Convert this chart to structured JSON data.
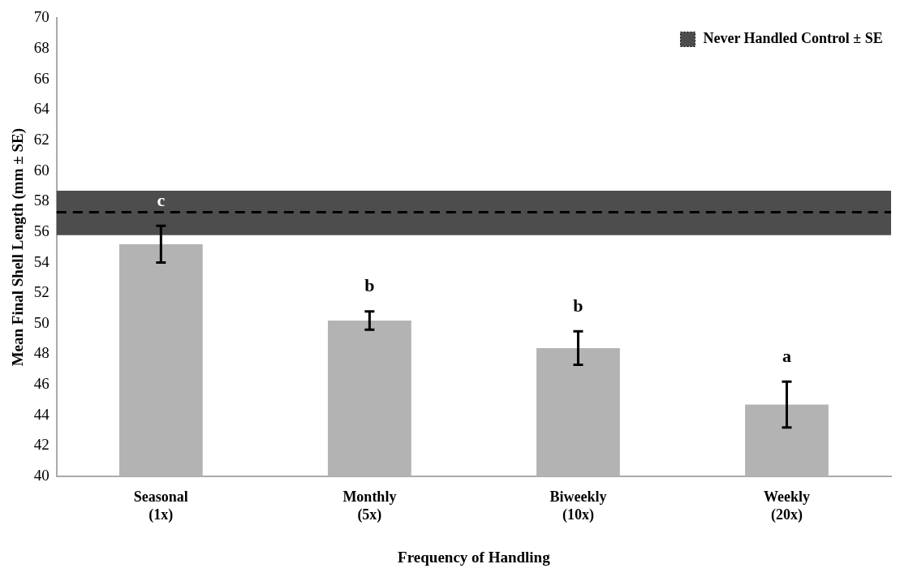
{
  "chart_data": {
    "type": "bar",
    "xlabel": "Frequency of Handling",
    "ylabel": "Mean Final Shell Length (mm ± SE)",
    "categories": [
      "Seasonal\n(1x)",
      "Monthly\n(5x)",
      "Biweekly\n(10x)",
      "Weekly\n(20x)"
    ],
    "values": [
      55.2,
      50.2,
      48.4,
      44.7
    ],
    "color": "#b3b3b3",
    "errors": [
      1.2,
      0.6,
      1.1,
      1.5
    ],
    "ylim": [
      40,
      70
    ],
    "yticks": [
      40,
      42,
      44,
      46,
      48,
      50,
      52,
      54,
      56,
      58,
      60,
      62,
      64,
      66,
      68,
      70
    ],
    "grid": false,
    "bands": [
      {
        "axis": "y",
        "from": 55.8,
        "to": 58.7,
        "label": "Never Handled Control ± SE",
        "color": "#4d4d4d"
      }
    ],
    "ref_lines": [
      {
        "axis": "y",
        "value": 57.3,
        "color": "#000000",
        "line_style": "dashed"
      }
    ],
    "legend": "top right",
    "annotations": [
      "c",
      "b",
      "b",
      "a"
    ]
  }
}
